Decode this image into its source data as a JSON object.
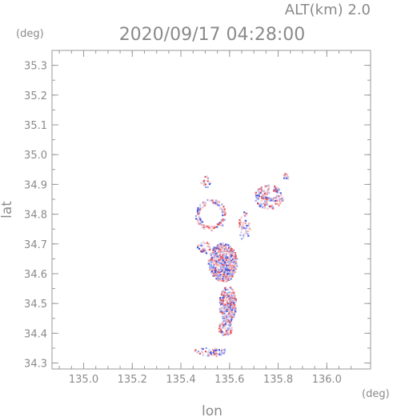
{
  "header": {
    "alt_label": "ALT(km) 2.0",
    "datetime": "2020/09/17 04:28:00"
  },
  "chart_data": {
    "type": "scatter",
    "title": "2020/09/17 04:28:00",
    "xlabel": "lon",
    "ylabel": "lat",
    "x_unit": "(deg)",
    "y_unit": "(deg)",
    "xlim": [
      134.87,
      136.18
    ],
    "ylim": [
      34.28,
      35.35
    ],
    "x_ticks": [
      135.0,
      135.2,
      135.4,
      135.6,
      135.8,
      136.0
    ],
    "x_tick_labels": [
      "135.0",
      "135.2",
      "135.4",
      "135.6",
      "135.8",
      "136.0"
    ],
    "y_ticks": [
      34.3,
      34.4,
      34.5,
      34.6,
      34.7,
      34.8,
      34.9,
      35.0,
      35.1,
      35.2,
      35.3
    ],
    "y_tick_labels": [
      "34.3",
      "34.4",
      "34.5",
      "34.6",
      "34.7",
      "34.8",
      "34.9",
      "35.0",
      "35.1",
      "35.2",
      "35.3"
    ],
    "grid": false,
    "colors": {
      "positive": "#e8545a",
      "negative": "#4a5be0",
      "axis": "#9a9a9a"
    },
    "clusters": [
      {
        "lon": 135.57,
        "lat": 34.64,
        "rx": 0.06,
        "ry": 0.065,
        "n": 520
      },
      {
        "lon": 135.59,
        "lat": 34.5,
        "rx": 0.035,
        "ry": 0.06,
        "n": 260
      },
      {
        "lon": 135.58,
        "lat": 34.42,
        "rx": 0.03,
        "ry": 0.025,
        "n": 70
      },
      {
        "lon": 135.76,
        "lat": 34.86,
        "rx": 0.06,
        "ry": 0.04,
        "n": 140
      },
      {
        "lon": 135.52,
        "lat": 34.8,
        "rx": 0.06,
        "ry": 0.05,
        "n": 110,
        "ring": true
      },
      {
        "lon": 135.52,
        "lat": 34.34,
        "rx": 0.07,
        "ry": 0.015,
        "n": 50
      },
      {
        "lon": 135.5,
        "lat": 34.91,
        "rx": 0.02,
        "ry": 0.02,
        "n": 18
      },
      {
        "lon": 135.49,
        "lat": 34.69,
        "rx": 0.03,
        "ry": 0.02,
        "n": 30
      },
      {
        "lon": 135.66,
        "lat": 34.76,
        "rx": 0.025,
        "ry": 0.05,
        "n": 40
      },
      {
        "lon": 135.83,
        "lat": 34.93,
        "rx": 0.015,
        "ry": 0.01,
        "n": 10
      }
    ]
  }
}
